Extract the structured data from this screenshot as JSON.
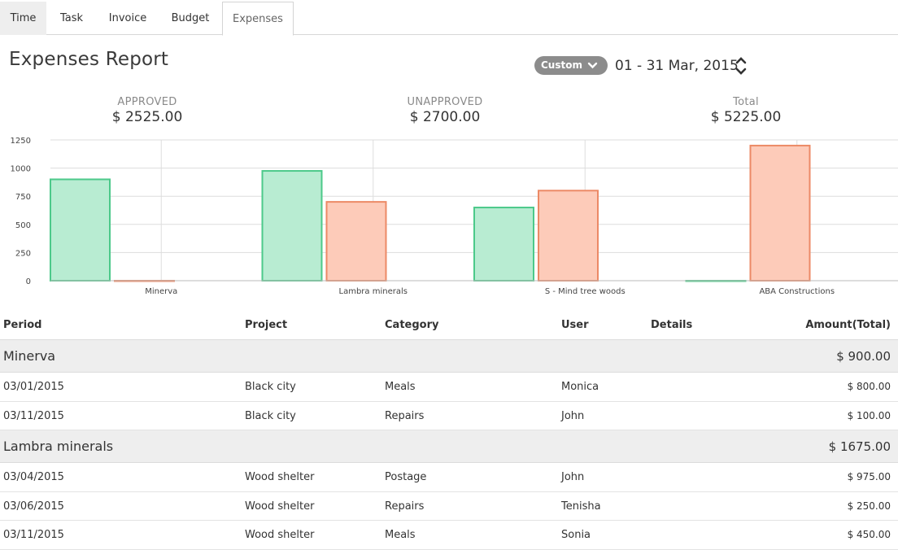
{
  "tabs": [
    {
      "label": "Time"
    },
    {
      "label": "Task"
    },
    {
      "label": "Invoice"
    },
    {
      "label": "Budget"
    },
    {
      "label": "Expenses"
    }
  ],
  "active_tab": "Expenses",
  "header": {
    "title": "Expenses Report",
    "range_select": "Custom",
    "date_range": "01 - 31 Mar, 2015"
  },
  "summary": {
    "approved": {
      "label": "APPROVED",
      "value": "$ 2525.00"
    },
    "unapproved": {
      "label": "UNAPPROVED",
      "value": "$ 2700.00"
    },
    "total": {
      "label": "Total",
      "value": "$ 5225.00"
    }
  },
  "colors": {
    "approved_fill": "#b8ecd2",
    "approved_stroke": "#4cc98a",
    "unapproved_fill": "#fdcbb9",
    "unapproved_stroke": "#ec8a66",
    "grid": "#dddddd"
  },
  "chart_data": {
    "type": "bar",
    "categories": [
      "Minerva",
      "Lambra minerals",
      "S - Mind tree woods",
      "ABA Constructions"
    ],
    "series": [
      {
        "values": [
          900,
          975,
          650,
          0
        ]
      },
      {
        "values": [
          0,
          700,
          800,
          1200
        ]
      }
    ],
    "ylim": [
      0,
      1250
    ],
    "yticks": [
      0,
      250,
      500,
      750,
      1000,
      1250
    ],
    "grid": true,
    "legend": "none"
  },
  "table": {
    "headers": {
      "period": "Period",
      "project": "Project",
      "category": "Category",
      "user": "User",
      "details": "Details",
      "amount": "Amount(Total)"
    },
    "groups": [
      {
        "name": "Minerva",
        "total": "$ 900.00",
        "rows": [
          {
            "period": "03/01/2015",
            "project": "Black city",
            "category": "Meals",
            "user": "Monica",
            "details": "",
            "amount": "$ 800.00"
          },
          {
            "period": "03/11/2015",
            "project": "Black city",
            "category": "Repairs",
            "user": "John",
            "details": "",
            "amount": "$ 100.00"
          }
        ]
      },
      {
        "name": "Lambra minerals",
        "total": "$ 1675.00",
        "rows": [
          {
            "period": "03/04/2015",
            "project": "Wood shelter",
            "category": "Postage",
            "user": "John",
            "details": "",
            "amount": "$ 975.00"
          },
          {
            "period": "03/06/2015",
            "project": "Wood shelter",
            "category": "Repairs",
            "user": "Tenisha",
            "details": "",
            "amount": "$ 250.00"
          },
          {
            "period": "03/11/2015",
            "project": "Wood shelter",
            "category": "Meals",
            "user": "Sonia",
            "details": "",
            "amount": "$ 450.00"
          }
        ]
      }
    ]
  }
}
